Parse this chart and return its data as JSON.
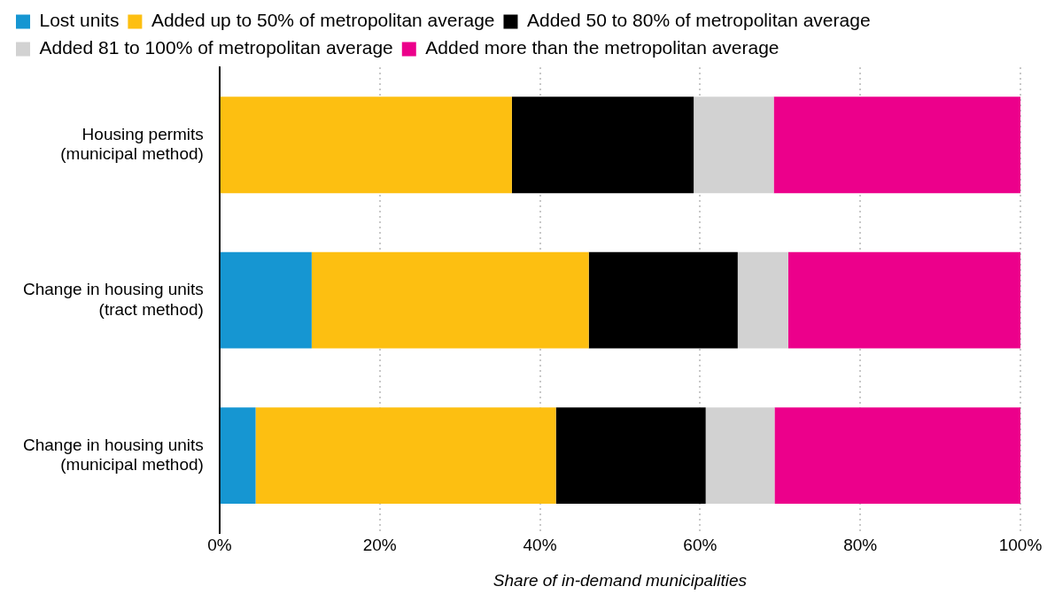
{
  "chart_data": {
    "type": "bar",
    "orientation": "horizontal",
    "stacked": true,
    "legend": "top left",
    "grid": "x",
    "xlabel": "Share of in-demand municipalities",
    "categories": [
      "Housing permits\n(municipal method)",
      "Change in housing units\n(tract method)",
      "Change in housing units\n(municipal method)"
    ],
    "series": [
      {
        "name": "Lost units",
        "color": "#1696d2",
        "values": [
          null,
          11.5,
          4.5
        ]
      },
      {
        "name": "Added up to 50% of metropolitan average",
        "color": "#fdbf11",
        "values": [
          36.5,
          34.6,
          37.5
        ]
      },
      {
        "name": "Added 50 to 80% of metropolitan average",
        "color": "#000000",
        "values": [
          22.7,
          18.6,
          18.7
        ]
      },
      {
        "name": "Added 81 to 100% of metropolitan average",
        "color": "#d2d2d2",
        "values": [
          10.0,
          6.3,
          8.6
        ]
      },
      {
        "name": "Added more than the metropolitan average",
        "color": "#ec008b",
        "values": [
          30.8,
          29.0,
          30.7
        ]
      }
    ],
    "xlim": [
      0,
      100
    ],
    "xticks": [
      {
        "value": 0,
        "label": "0%"
      },
      {
        "value": 20,
        "label": "20%"
      },
      {
        "value": 40,
        "label": "40%"
      },
      {
        "value": 60,
        "label": "60%"
      },
      {
        "value": 80,
        "label": "80%"
      },
      {
        "value": 100,
        "label": "100%"
      }
    ]
  }
}
